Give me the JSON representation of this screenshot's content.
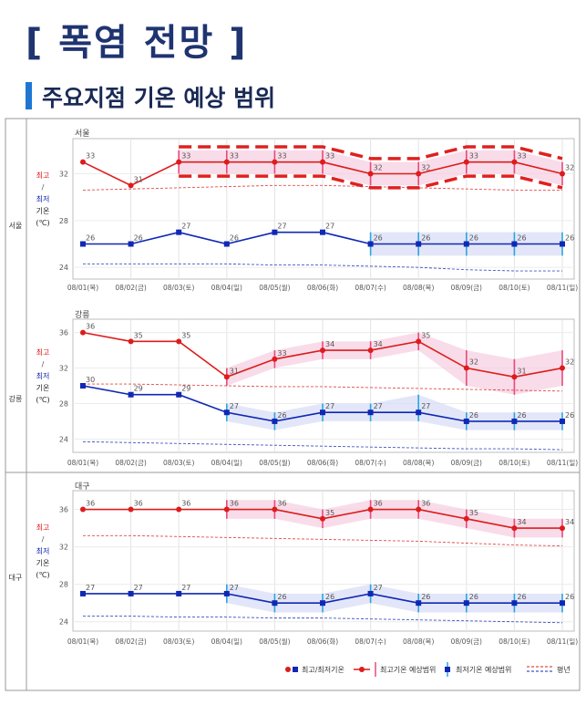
{
  "page": {
    "title": "[ 폭염 전망 ]",
    "subtitle": "주요지점 기온 예상 범위"
  },
  "labels": {
    "high": "최고",
    "slash": "/",
    "low": "최저",
    "temp1": "기온",
    "temp2": "(℃)"
  },
  "legend": {
    "max_min": "최고/최저기온",
    "max_range": "최고기온 예상범위",
    "min_range": "최저기온 예상범위",
    "normal": "평년"
  },
  "colors": {
    "high": "#dd1c1c",
    "low": "#1028b4",
    "high_band": "#f7cde0",
    "low_band": "#d6dcf5",
    "high_whisker": "#e84a7a",
    "low_whisker": "#2aa6e0",
    "title": "#1f3470",
    "accent": "#1f76d2",
    "highlight": "#e02020"
  },
  "chart_data": [
    {
      "type": "line",
      "station": "서울",
      "side_label": "서울",
      "categories": [
        "08/01(목)",
        "08/02(금)",
        "08/03(토)",
        "08/04(일)",
        "08/05(월)",
        "08/06(화)",
        "08/07(수)",
        "08/08(목)",
        "08/09(금)",
        "08/10(토)",
        "08/11(일)"
      ],
      "ylim": [
        23,
        35
      ],
      "yticks": [
        24,
        28,
        32
      ],
      "series": [
        {
          "role": "high",
          "values": [
            33,
            31,
            33,
            33,
            33,
            33,
            32,
            32,
            33,
            33,
            32
          ],
          "range": [
            null,
            null,
            [
              32,
              34
            ],
            [
              32,
              34
            ],
            [
              32,
              34
            ],
            [
              32,
              34
            ],
            [
              31,
              33
            ],
            [
              31,
              33
            ],
            [
              32,
              34
            ],
            [
              32,
              34
            ],
            [
              31,
              33
            ]
          ]
        },
        {
          "role": "low",
          "values": [
            26,
            26,
            27,
            26,
            27,
            27,
            26,
            26,
            26,
            26,
            26
          ],
          "range": [
            null,
            null,
            null,
            null,
            null,
            null,
            [
              25,
              27
            ],
            [
              25,
              27
            ],
            [
              25,
              27
            ],
            [
              25,
              27
            ],
            [
              25,
              27
            ]
          ]
        },
        {
          "role": "high_normal",
          "values": [
            30.6,
            30.7,
            30.8,
            30.9,
            31.0,
            31.0,
            30.9,
            30.8,
            30.7,
            30.6,
            30.6
          ]
        },
        {
          "role": "low_normal",
          "values": [
            24.3,
            24.3,
            24.3,
            24.3,
            24.2,
            24.2,
            24.1,
            24.0,
            23.8,
            23.7,
            23.7
          ]
        }
      ],
      "highlight": {
        "from": 2,
        "to": 10
      }
    },
    {
      "type": "line",
      "station": "강릉",
      "side_label": "강릉",
      "categories": [
        "08/01(목)",
        "08/02(금)",
        "08/03(토)",
        "08/04(일)",
        "08/05(월)",
        "08/06(화)",
        "08/07(수)",
        "08/08(목)",
        "08/09(금)",
        "08/10(토)",
        "08/11(일)"
      ],
      "ylim": [
        22.5,
        37.5
      ],
      "yticks": [
        24,
        28,
        32,
        36
      ],
      "series": [
        {
          "role": "high",
          "values": [
            36,
            35,
            35,
            31,
            33,
            34,
            34,
            35,
            32,
            31,
            32
          ],
          "range": [
            null,
            null,
            null,
            [
              30,
              32
            ],
            [
              32,
              34
            ],
            [
              33,
              35
            ],
            [
              33,
              35
            ],
            [
              34,
              36
            ],
            [
              30,
              34
            ],
            [
              29,
              33
            ],
            [
              30,
              34
            ]
          ]
        },
        {
          "role": "low",
          "values": [
            30,
            29,
            29,
            27,
            26,
            27,
            27,
            27,
            26,
            26,
            26
          ],
          "range": [
            null,
            null,
            null,
            [
              26,
              28
            ],
            [
              25,
              27
            ],
            [
              26,
              28
            ],
            [
              26,
              28
            ],
            [
              26,
              29
            ],
            [
              25,
              27
            ],
            [
              25,
              27
            ],
            [
              25,
              27
            ]
          ]
        },
        {
          "role": "high_normal",
          "values": [
            30.2,
            30.2,
            30.1,
            30.0,
            29.9,
            29.9,
            29.8,
            29.7,
            29.6,
            29.5,
            29.4
          ]
        },
        {
          "role": "low_normal",
          "values": [
            23.7,
            23.6,
            23.5,
            23.4,
            23.3,
            23.2,
            23.1,
            23.0,
            22.9,
            22.9,
            22.8
          ]
        }
      ]
    },
    {
      "type": "line",
      "station": "대구",
      "side_label": "대구",
      "categories": [
        "08/01(목)",
        "08/02(금)",
        "08/03(토)",
        "08/04(일)",
        "08/05(월)",
        "08/06(화)",
        "08/07(수)",
        "08/08(목)",
        "08/09(금)",
        "08/10(토)",
        "08/11(일)"
      ],
      "ylim": [
        23,
        38
      ],
      "yticks": [
        24,
        28,
        32,
        36
      ],
      "series": [
        {
          "role": "high",
          "values": [
            36,
            36,
            36,
            36,
            36,
            35,
            36,
            36,
            35,
            34,
            34
          ],
          "range": [
            null,
            null,
            null,
            [
              35,
              37
            ],
            [
              35,
              37
            ],
            [
              34,
              36
            ],
            [
              35,
              37
            ],
            [
              35,
              37
            ],
            [
              34,
              36
            ],
            [
              33,
              35
            ],
            [
              33,
              35
            ]
          ]
        },
        {
          "role": "low",
          "values": [
            27,
            27,
            27,
            27,
            26,
            26,
            27,
            26,
            26,
            26,
            26
          ],
          "range": [
            null,
            null,
            null,
            [
              26,
              28
            ],
            [
              25,
              27
            ],
            [
              25,
              27
            ],
            [
              26,
              28
            ],
            [
              25,
              27
            ],
            [
              25,
              27
            ],
            [
              25,
              27
            ],
            [
              25,
              27
            ]
          ]
        },
        {
          "role": "high_normal",
          "values": [
            33.2,
            33.2,
            33.1,
            33.0,
            32.9,
            32.8,
            32.7,
            32.6,
            32.4,
            32.2,
            32.1
          ]
        },
        {
          "role": "low_normal",
          "values": [
            24.6,
            24.6,
            24.5,
            24.5,
            24.4,
            24.4,
            24.3,
            24.2,
            24.1,
            24.0,
            23.9
          ]
        }
      ]
    }
  ]
}
